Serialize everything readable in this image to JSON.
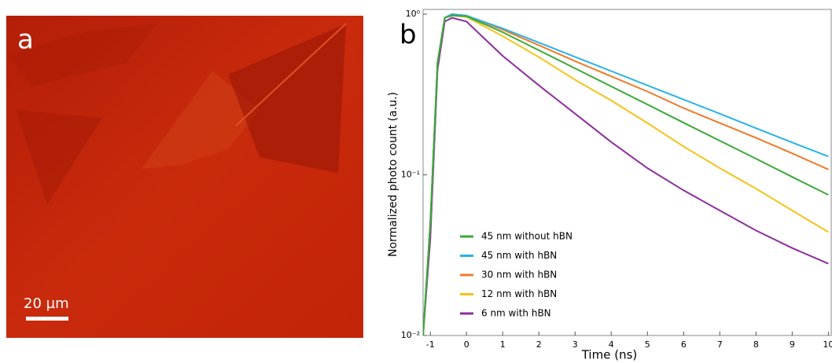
{
  "image": {
    "label": "a",
    "scale_bar": "20 µm"
  },
  "chart_data": {
    "type": "line",
    "panel_label": "b",
    "x_label": "Time (ns)",
    "y_label": "Normalized photo count (a.u.)",
    "log_y": true,
    "xlim": [
      -1.2,
      10.1
    ],
    "xticks": [
      -1,
      0,
      1,
      2,
      3,
      4,
      5,
      6,
      7,
      8,
      9,
      10
    ],
    "ylim": [
      0.01,
      1
    ],
    "yticks": [
      {
        "value": 1,
        "label": "10⁰"
      },
      {
        "value": 0.1,
        "label": "10⁻¹"
      },
      {
        "value": 0.01,
        "label": "10⁻²"
      }
    ],
    "x": [
      -1.2,
      -1,
      -0.8,
      -0.6,
      -0.4,
      0,
      1,
      2,
      3,
      4,
      5,
      6,
      7,
      8,
      9,
      10
    ],
    "series": [
      {
        "name": "45 nm without hBN",
        "color": "#3aa935",
        "values": [
          0.01,
          0.05,
          0.5,
          0.95,
          0.98,
          0.97,
          0.772,
          0.596,
          0.46,
          0.355,
          0.274,
          0.211,
          0.163,
          0.126,
          0.097,
          0.075
        ]
      },
      {
        "name": "45 nm with hBN",
        "color": "#2ab3e6",
        "values": [
          0.01,
          0.05,
          0.5,
          0.95,
          1.0,
          0.98,
          0.815,
          0.665,
          0.542,
          0.442,
          0.36,
          0.294,
          0.24,
          0.195,
          0.159,
          0.13
        ]
      },
      {
        "name": "30 nm with hBN",
        "color": "#f07a2a",
        "values": [
          0.01,
          0.05,
          0.5,
          0.95,
          1.0,
          0.98,
          0.8,
          0.64,
          0.51,
          0.41,
          0.33,
          0.26,
          0.21,
          0.17,
          0.136,
          0.108
        ]
      },
      {
        "name": "12 nm with hBN",
        "color": "#f7c21b",
        "values": [
          0.01,
          0.05,
          0.5,
          0.95,
          0.98,
          0.96,
          0.73,
          0.54,
          0.39,
          0.29,
          0.21,
          0.15,
          0.11,
          0.082,
          0.06,
          0.044
        ]
      },
      {
        "name": "6 nm with hBN",
        "color": "#8e2e9e",
        "values": [
          0.01,
          0.04,
          0.45,
          0.9,
          0.95,
          0.9,
          0.55,
          0.36,
          0.24,
          0.16,
          0.11,
          0.08,
          0.06,
          0.045,
          0.035,
          0.028
        ]
      }
    ]
  }
}
